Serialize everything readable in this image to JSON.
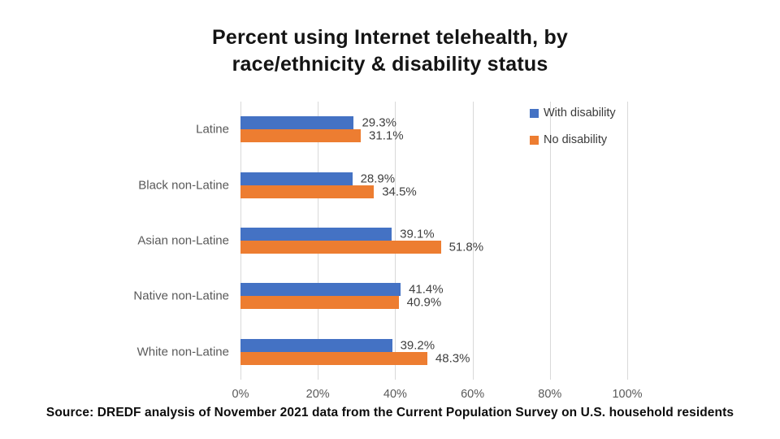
{
  "title": {
    "line1": "Percent using Internet telehealth, by",
    "line2": "race/ethnicity & disability status"
  },
  "source": "Source: DREDF analysis of November 2021 data from the Current Population Survey on U.S. household residents",
  "chart_data": {
    "type": "bar",
    "orientation": "horizontal",
    "title": "Percent using Internet telehealth, by race/ethnicity & disability status",
    "categories": [
      "Latine",
      "Black non-Latine",
      "Asian non-Latine",
      "Native non-Latine",
      "White non-Latine"
    ],
    "series": [
      {
        "name": "With disability",
        "color": "#4472C4",
        "values": [
          29.3,
          28.9,
          39.1,
          41.4,
          39.2
        ],
        "labels": [
          "29.3%",
          "28.9%",
          "39.1%",
          "41.4%",
          "39.2%"
        ]
      },
      {
        "name": "No disability",
        "color": "#ED7D31",
        "values": [
          31.1,
          34.5,
          51.8,
          40.9,
          48.3
        ],
        "labels": [
          "31.1%",
          "34.5%",
          "51.8%",
          "40.9%",
          "48.3%"
        ]
      }
    ],
    "x_axis": {
      "min": 0,
      "max": 100,
      "tick_step": 20,
      "ticks": [
        "0%",
        "20%",
        "40%",
        "60%",
        "80%",
        "100%"
      ]
    },
    "grid": true,
    "legend_position": "top-right",
    "colors": {
      "gridline": "#d9d9d9",
      "category_label": "#595959",
      "value_label": "#3f3f3f"
    }
  }
}
